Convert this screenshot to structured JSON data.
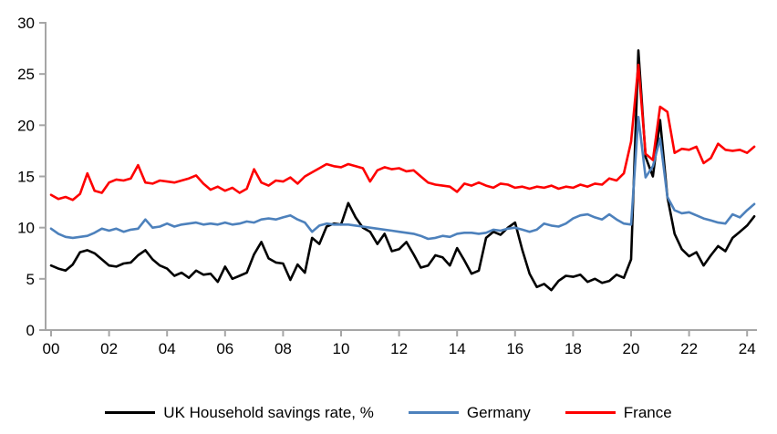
{
  "chart_data": {
    "type": "line",
    "title": "",
    "xlabel": "",
    "ylabel": "",
    "grid": false,
    "background": "#ffffff",
    "axis_color": "#a6a6a6",
    "text_color": "#000000",
    "ylim": [
      0,
      30
    ],
    "y_ticks": [
      0,
      5,
      10,
      15,
      20,
      25,
      30
    ],
    "x_tick_labels": [
      "00",
      "02",
      "04",
      "06",
      "08",
      "10",
      "12",
      "14",
      "16",
      "18",
      "20",
      "22",
      "24"
    ],
    "x_tick_step_years": 2,
    "x_start_year": 2000,
    "points_per_year": 4,
    "legend_position": "bottom",
    "series": [
      {
        "name": "UK Household savings rate, %",
        "color": "#000000",
        "values": [
          6.3,
          6.0,
          5.8,
          6.4,
          7.6,
          7.8,
          7.5,
          6.9,
          6.3,
          6.2,
          6.5,
          6.6,
          7.3,
          7.8,
          6.9,
          6.3,
          6.0,
          5.3,
          5.6,
          5.1,
          5.8,
          5.4,
          5.5,
          4.7,
          6.2,
          5.0,
          5.3,
          5.6,
          7.4,
          8.6,
          7.0,
          6.6,
          6.5,
          4.9,
          6.4,
          5.6,
          9.0,
          8.4,
          10.1,
          10.4,
          10.3,
          12.4,
          11.0,
          10.0,
          9.6,
          8.4,
          9.4,
          7.7,
          7.9,
          8.6,
          7.4,
          6.1,
          6.3,
          7.3,
          7.1,
          6.3,
          8.0,
          6.8,
          5.5,
          5.8,
          9.0,
          9.6,
          9.3,
          10.0,
          10.5,
          7.8,
          5.5,
          4.2,
          4.5,
          3.9,
          4.8,
          5.3,
          5.2,
          5.4,
          4.7,
          5.0,
          4.6,
          4.8,
          5.4,
          5.1,
          6.9,
          27.3,
          16.9,
          15.0,
          20.5,
          13.0,
          9.4,
          7.9,
          7.2,
          7.6,
          6.3,
          7.3,
          8.2,
          7.7,
          9.0,
          9.6,
          10.2,
          11.1
        ]
      },
      {
        "name": "Germany",
        "color": "#4d81bc",
        "values": [
          9.9,
          9.4,
          9.1,
          9.0,
          9.1,
          9.2,
          9.5,
          9.9,
          9.7,
          9.9,
          9.6,
          9.8,
          9.9,
          10.8,
          10.0,
          10.1,
          10.4,
          10.1,
          10.3,
          10.4,
          10.5,
          10.3,
          10.4,
          10.3,
          10.5,
          10.3,
          10.4,
          10.6,
          10.5,
          10.8,
          10.9,
          10.8,
          11.0,
          11.2,
          10.8,
          10.5,
          9.6,
          10.2,
          10.4,
          10.3,
          10.3,
          10.3,
          10.2,
          10.1,
          10.0,
          9.9,
          9.8,
          9.7,
          9.6,
          9.5,
          9.4,
          9.2,
          8.9,
          9.0,
          9.2,
          9.1,
          9.4,
          9.5,
          9.5,
          9.4,
          9.5,
          9.8,
          9.7,
          9.9,
          10.0,
          9.8,
          9.6,
          9.8,
          10.4,
          10.2,
          10.1,
          10.4,
          10.9,
          11.2,
          11.3,
          11.0,
          10.8,
          11.3,
          10.8,
          10.4,
          10.3,
          20.8,
          14.9,
          16.0,
          18.7,
          13.0,
          11.7,
          11.4,
          11.5,
          11.2,
          10.9,
          10.7,
          10.5,
          10.4,
          11.3,
          11.0,
          11.7,
          12.3
        ]
      },
      {
        "name": "France",
        "color": "#fe0000",
        "values": [
          13.2,
          12.8,
          13.0,
          12.7,
          13.3,
          15.3,
          13.6,
          13.4,
          14.4,
          14.7,
          14.6,
          14.8,
          16.1,
          14.4,
          14.3,
          14.6,
          14.5,
          14.4,
          14.6,
          14.8,
          15.1,
          14.3,
          13.7,
          14.0,
          13.6,
          13.9,
          13.4,
          13.8,
          15.7,
          14.4,
          14.1,
          14.6,
          14.5,
          14.9,
          14.3,
          15.0,
          15.4,
          15.8,
          16.2,
          16.0,
          15.9,
          16.2,
          16.0,
          15.8,
          14.5,
          15.6,
          15.9,
          15.7,
          15.8,
          15.5,
          15.6,
          15.0,
          14.4,
          14.2,
          14.1,
          14.0,
          13.5,
          14.3,
          14.1,
          14.4,
          14.1,
          13.9,
          14.3,
          14.2,
          13.9,
          14.0,
          13.8,
          14.0,
          13.9,
          14.1,
          13.8,
          14.0,
          13.9,
          14.2,
          14.0,
          14.3,
          14.2,
          14.8,
          14.6,
          15.3,
          18.4,
          25.9,
          17.2,
          16.6,
          21.8,
          21.3,
          17.3,
          17.7,
          17.6,
          17.9,
          16.3,
          16.8,
          18.2,
          17.6,
          17.5,
          17.6,
          17.3,
          17.9
        ]
      }
    ]
  }
}
